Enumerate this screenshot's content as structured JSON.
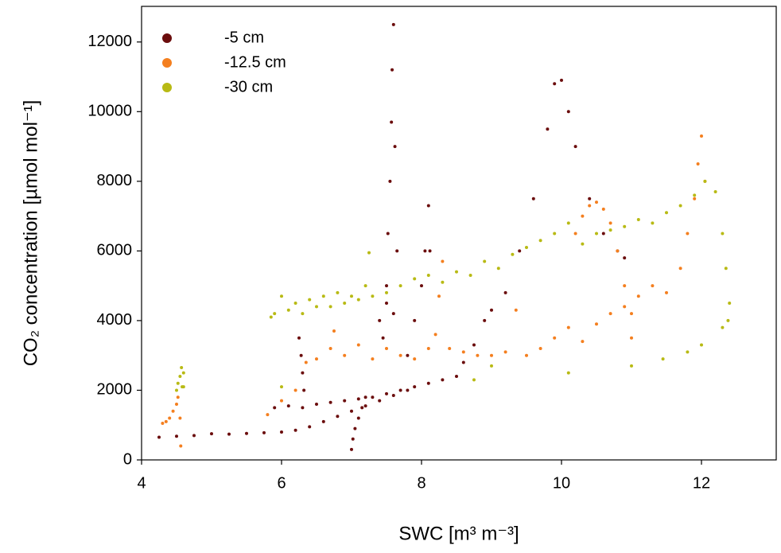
{
  "chart_data": {
    "type": "scatter",
    "xlabel": "SWC [m³ m⁻³]",
    "ylabel": "CO₂ concentration [µmol mol⁻¹]",
    "xlim": [
      4,
      13
    ],
    "ylim": [
      0,
      13000
    ],
    "xticks": [
      4,
      6,
      8,
      10,
      12
    ],
    "yticks": [
      0,
      2000,
      4000,
      6000,
      8000,
      10000,
      12000
    ],
    "legend": "top-left",
    "series": [
      {
        "name": "-5 cm",
        "color": "#6b0d0d",
        "x": [
          4.25,
          4.5,
          4.75,
          5.0,
          5.25,
          5.5,
          5.75,
          6.0,
          6.2,
          6.4,
          6.6,
          6.8,
          7.0,
          7.2,
          7.4,
          7.6,
          7.8,
          5.9,
          6.1,
          6.3,
          6.5,
          6.7,
          6.9,
          7.1,
          7.3,
          7.5,
          7.7,
          7.9,
          8.1,
          8.3,
          8.5,
          6.25,
          6.28,
          6.3,
          6.32,
          7.0,
          7.02,
          7.05,
          7.1,
          7.15,
          7.2,
          7.45,
          7.5,
          7.52,
          7.55,
          7.57,
          7.58,
          7.6,
          7.62,
          7.65,
          7.8,
          7.9,
          8.0,
          8.05,
          8.1,
          8.12,
          7.4,
          7.5,
          7.6,
          8.6,
          8.75,
          8.9,
          9.0,
          9.2,
          9.4,
          9.6,
          9.8,
          9.9,
          10.0,
          10.1,
          10.2,
          10.4,
          10.6,
          10.8,
          10.9
        ],
        "y": [
          650,
          680,
          700,
          750,
          740,
          760,
          780,
          800,
          850,
          950,
          1100,
          1250,
          1400,
          1550,
          1700,
          1850,
          2000,
          1500,
          1550,
          1500,
          1600,
          1650,
          1700,
          1750,
          1800,
          1900,
          2000,
          2100,
          2200,
          2300,
          2400,
          3500,
          3000,
          2500,
          2000,
          300,
          600,
          900,
          1200,
          1500,
          1800,
          3500,
          5000,
          6500,
          8000,
          9700,
          11200,
          12500,
          9000,
          6000,
          3000,
          4000,
          5000,
          6000,
          7300,
          6000,
          4000,
          4500,
          4200,
          2800,
          3300,
          4000,
          4300,
          4800,
          6000,
          7500,
          9500,
          10800,
          10900,
          10000,
          9000,
          7500,
          6500,
          6000,
          5800
        ]
      },
      {
        "name": "-12.5 cm",
        "color": "#f47f1f",
        "x": [
          4.3,
          4.35,
          4.4,
          4.45,
          4.5,
          4.52,
          4.55,
          4.56,
          5.8,
          6.0,
          6.2,
          6.35,
          6.5,
          6.7,
          6.75,
          6.9,
          7.1,
          7.3,
          7.5,
          7.7,
          7.9,
          8.1,
          8.2,
          8.25,
          8.3,
          8.4,
          8.6,
          8.8,
          9.0,
          9.2,
          9.35,
          9.5,
          9.7,
          9.9,
          10.1,
          10.3,
          10.5,
          10.7,
          10.9,
          11.1,
          11.3,
          11.5,
          11.7,
          11.8,
          11.9,
          11.95,
          12.0,
          12.05,
          10.2,
          10.3,
          10.4,
          10.5,
          10.6,
          10.7,
          10.8,
          10.9,
          11.0,
          11.0
        ],
        "y": [
          1050,
          1100,
          1200,
          1400,
          1600,
          1800,
          1200,
          400,
          1300,
          1700,
          2000,
          2800,
          2900,
          3200,
          3700,
          3000,
          3300,
          2900,
          3200,
          3000,
          2900,
          3200,
          3600,
          4700,
          5700,
          3200,
          3100,
          3000,
          3000,
          3100,
          4300,
          3000,
          3200,
          3500,
          3800,
          3400,
          3900,
          4200,
          4400,
          4700,
          5000,
          4800,
          5500,
          6500,
          7500,
          8500,
          9300,
          8000,
          6500,
          7000,
          7300,
          7400,
          7200,
          6800,
          6000,
          5000,
          4200,
          3500
        ]
      },
      {
        "name": "-30 cm",
        "color": "#b8ba14",
        "x": [
          4.5,
          4.52,
          4.55,
          4.57,
          4.6,
          4.58,
          5.85,
          5.9,
          6.0,
          6.1,
          6.2,
          6.3,
          6.4,
          6.5,
          6.6,
          6.7,
          6.8,
          6.9,
          7.0,
          7.1,
          7.2,
          7.25,
          7.3,
          7.5,
          7.7,
          7.9,
          8.1,
          8.3,
          8.5,
          8.7,
          8.9,
          9.1,
          9.3,
          9.5,
          9.7,
          9.9,
          10.1,
          10.3,
          10.5,
          10.7,
          10.9,
          11.1,
          11.3,
          11.5,
          11.7,
          11.9,
          12.05,
          12.2,
          12.3,
          12.35,
          12.4,
          12.38,
          12.3,
          12.0,
          11.8,
          11.45,
          11.0,
          10.1,
          9.0,
          8.75,
          6.0,
          4.6
        ],
        "y": [
          2000,
          2200,
          2400,
          2650,
          2500,
          2100,
          4100,
          4200,
          4700,
          4300,
          4500,
          4200,
          4600,
          4400,
          4700,
          4400,
          4800,
          4500,
          4700,
          4600,
          5000,
          5950,
          4700,
          4800,
          5000,
          5200,
          5300,
          5100,
          5400,
          5300,
          5700,
          5500,
          5900,
          6100,
          6300,
          6500,
          6800,
          6200,
          6500,
          6600,
          6700,
          6900,
          6800,
          7100,
          7300,
          7600,
          8000,
          7700,
          6500,
          5500,
          4500,
          4000,
          3800,
          3300,
          3100,
          2900,
          2700,
          2500,
          2700,
          2300,
          2100,
          2100
        ]
      }
    ]
  }
}
